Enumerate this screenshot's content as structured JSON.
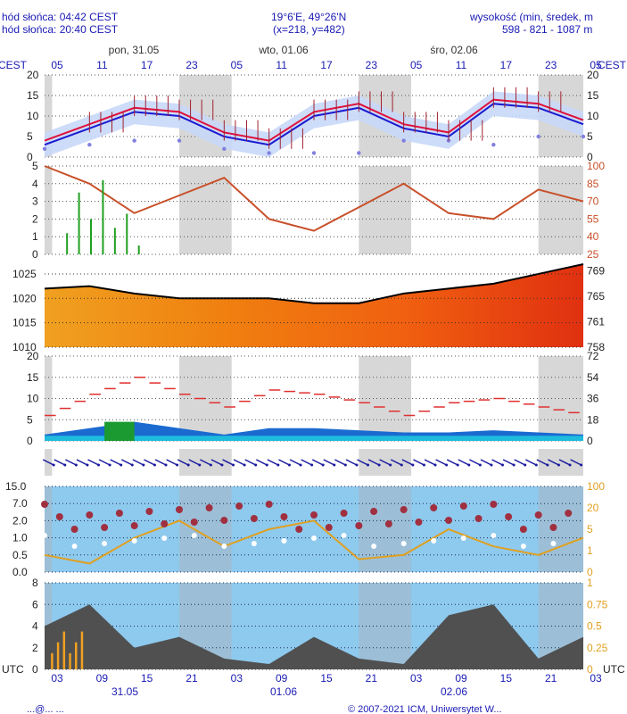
{
  "header": {
    "sunrise": "hód słońca: 04:42 CEST",
    "sunset": "hód słońca: 20:40 CEST",
    "coords": "19°6'E, 49°26'N",
    "grid": "(x=218, y=482)",
    "altitude_label": "wysokość (min, średek, m",
    "altitude_values": "598 - 821 - 1087 m"
  },
  "axis": {
    "top_tz": "CEST",
    "bottom_tz": "UTC",
    "top_days": [
      "pon, 31.05",
      "wto, 01.06",
      "śro, 02.06"
    ],
    "top_hours": [
      "05",
      "11",
      "17",
      "23",
      "05",
      "11",
      "17",
      "23",
      "05",
      "11",
      "17",
      "23",
      "05"
    ],
    "bottom_hours": [
      "03",
      "09",
      "15",
      "21",
      "03",
      "09",
      "15",
      "21",
      "03",
      "09",
      "15",
      "21",
      "03"
    ],
    "bottom_days": [
      "31.05",
      "01.06",
      "02.06"
    ]
  },
  "footer": {
    "left": "...@... ...",
    "right": "© 2007-2021 ICM, Uniwersytet W..."
  },
  "chart_data": [
    {
      "type": "line",
      "panel": "temperature",
      "ylim": [
        0,
        20
      ],
      "yticks_left": [
        "0",
        "5",
        "10",
        "15",
        "20"
      ],
      "yticks_right": [
        "0",
        "5",
        "10",
        "15",
        "20"
      ],
      "x_hours": [
        0,
        6,
        12,
        18,
        24,
        30,
        36,
        42,
        48,
        54,
        60,
        66,
        72
      ],
      "series": [
        {
          "values": [
            4,
            8,
            12,
            11,
            6,
            4,
            11,
            13,
            8,
            6,
            14,
            13,
            9
          ],
          "color": "#e0103c"
        },
        {
          "values": [
            3,
            7,
            11,
            10,
            5,
            3,
            10,
            12,
            7,
            5,
            13,
            12,
            8
          ],
          "color": "#1a1ad0"
        },
        {
          "values": [
            2,
            3,
            4,
            4,
            2,
            1,
            1,
            1,
            4,
            4,
            3,
            5,
            5
          ],
          "color": "#8080e0"
        }
      ]
    },
    {
      "type": "line",
      "panel": "precipitation-humidity",
      "ylim": [
        0,
        5
      ],
      "yticks_left": [
        "0",
        "1",
        "2",
        "3",
        "4",
        "5"
      ],
      "yticks_right": [
        "25",
        "40",
        "55",
        "70",
        "85",
        "100"
      ],
      "x_hours": [
        0,
        6,
        12,
        18,
        24,
        30,
        36,
        42,
        48,
        54,
        60,
        66,
        72
      ],
      "series": [
        {
          "values": [
            100,
            85,
            60,
            75,
            90,
            55,
            45,
            65,
            85,
            60,
            55,
            80,
            70
          ],
          "color": "#c8502a"
        }
      ],
      "precip_bars": [
        1.2,
        3.5,
        2.0,
        4.2,
        1.5,
        2.3,
        0.5
      ]
    },
    {
      "type": "area",
      "panel": "pressure",
      "ylim": [
        1010,
        1027
      ],
      "yticks_left": [
        "1010",
        "1015",
        "1020",
        "1025"
      ],
      "yticks_right": [
        "758",
        "761",
        "765",
        "769"
      ],
      "x_hours": [
        0,
        6,
        12,
        18,
        24,
        30,
        36,
        42,
        48,
        54,
        60,
        66,
        72
      ],
      "series": [
        {
          "values": [
            1022,
            1022.5,
            1021,
            1020,
            1020,
            1020,
            1019,
            1019,
            1021,
            1022,
            1023,
            1025,
            1027
          ],
          "color": "#000000"
        }
      ]
    },
    {
      "type": "line",
      "panel": "wind",
      "ylim": [
        0,
        20
      ],
      "yticks_left": [
        "0",
        "5",
        "10",
        "15",
        "20"
      ],
      "yticks_right": [
        "0",
        "18",
        "36",
        "54",
        "72"
      ],
      "x_hours": [
        0,
        6,
        12,
        18,
        24,
        30,
        36,
        42,
        48,
        54,
        60,
        66,
        72
      ],
      "series": [
        {
          "values": [
            6,
            11,
            15,
            11,
            8,
            12,
            11,
            9,
            6,
            9,
            10,
            8,
            6
          ],
          "color": "#e03030"
        },
        {
          "values": [
            1.5,
            3,
            4.5,
            3,
            1.5,
            3,
            3,
            2.5,
            2,
            2,
            2.5,
            2,
            1.5
          ],
          "color": "#1a1ad0"
        }
      ]
    },
    {
      "type": "line",
      "panel": "clouds-visibility",
      "yticks_left": [
        "0.0",
        "0.5",
        "1.0",
        "2.0",
        "7.0",
        "15.0"
      ],
      "yticks_right": [
        "0",
        "1",
        "5",
        "20",
        "100"
      ],
      "x_hours": [
        0,
        6,
        12,
        18,
        24,
        30,
        36,
        42,
        48,
        54,
        60,
        66,
        72
      ],
      "series": [
        {
          "values": [
            20,
            10,
            40,
            60,
            30,
            50,
            60,
            15,
            20,
            50,
            30,
            20,
            40
          ],
          "color": "#e0a020"
        }
      ]
    },
    {
      "type": "area",
      "panel": "snow-rain",
      "ylim": [
        0,
        8
      ],
      "yticks_left": [
        "0",
        "2",
        "4",
        "6",
        "8"
      ],
      "yticks_right": [
        "0",
        "0.25",
        "0.5",
        "0.75",
        "1"
      ],
      "x_hours": [
        0,
        6,
        12,
        18,
        24,
        30,
        36,
        42,
        48,
        54,
        60,
        66,
        72
      ],
      "series": [
        {
          "values": [
            4,
            6,
            2,
            3,
            1,
            0.5,
            3,
            1,
            0.5,
            5,
            6,
            1,
            3
          ],
          "color": "#505050"
        }
      ]
    }
  ]
}
